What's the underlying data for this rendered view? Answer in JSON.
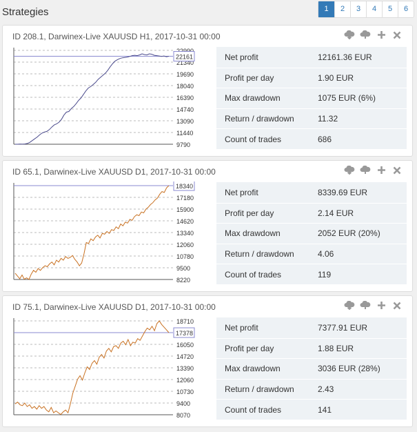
{
  "page_title": "Strategies",
  "pagination": {
    "pages": [
      "1",
      "2",
      "3",
      "4",
      "5",
      "6"
    ],
    "active": "1"
  },
  "icons": [
    "cloud-download-icon",
    "cloud-upload-icon",
    "plus-icon",
    "close-icon"
  ],
  "metric_labels": [
    "Net profit",
    "Profit per day",
    "Max drawdown",
    "Return / drawdown",
    "Count of trades"
  ],
  "strategies": [
    {
      "title": "ID 208.1, Darwinex-Live XAUUSD H1, 2017-10-31 00:00",
      "metrics": [
        "12161.36 EUR",
        "1.90 EUR",
        "1075 EUR (6%)",
        "11.32",
        "686"
      ],
      "chart_data": {
        "type": "line",
        "yticks": [
          "22990",
          "21340",
          "19690",
          "18040",
          "16390",
          "14740",
          "13090",
          "11440",
          "9790"
        ],
        "ylim": [
          9790,
          22990
        ],
        "current_label": "22161",
        "current_value": 22161,
        "series_color": "#4a4a8c",
        "values": [
          9790,
          9790,
          9810,
          9800,
          9830,
          9900,
          10050,
          10300,
          10550,
          10800,
          11100,
          11350,
          11500,
          11600,
          11850,
          12200,
          12500,
          12650,
          12900,
          13300,
          13900,
          14300,
          14400,
          14800,
          15100,
          15500,
          15950,
          16300,
          16800,
          17300,
          17700,
          17900,
          18200,
          18500,
          18900,
          19200,
          19500,
          19800,
          20200,
          20700,
          21150,
          21500,
          21700,
          21850,
          21950,
          22000,
          22050,
          22150,
          22250,
          22300,
          22250,
          22350,
          22500,
          22400,
          22350,
          22500,
          22450,
          22300,
          22250,
          22200,
          22150,
          22200,
          22100,
          22161
        ]
      }
    },
    {
      "title": "ID 65.1, Darwinex-Live XAUUSD D1, 2017-10-31 00:00",
      "metrics": [
        "8339.69 EUR",
        "2.14 EUR",
        "2052 EUR (20%)",
        "4.06",
        "119"
      ],
      "chart_data": {
        "type": "line",
        "yticks": [
          "18340",
          "17180",
          "15900",
          "14620",
          "13340",
          "12060",
          "10780",
          "9500",
          "8220"
        ],
        "ylim": [
          8220,
          18340
        ],
        "current_label": "18340",
        "current_value": 18340,
        "series_color": "#c87020",
        "values": [
          8900,
          8600,
          8300,
          8700,
          8250,
          8400,
          8220,
          8800,
          9200,
          9000,
          9400,
          9200,
          9500,
          9700,
          9600,
          9900,
          10100,
          9800,
          10300,
          10100,
          10500,
          10300,
          10700,
          10500,
          10600,
          10800,
          10400,
          10100,
          9700,
          10000,
          11000,
          12200,
          12100,
          12600,
          12400,
          12800,
          13000,
          12700,
          13200,
          13100,
          13400,
          13200,
          13600,
          13500,
          13900,
          13700,
          14200,
          14000,
          14400,
          14300,
          14700,
          14600,
          15000,
          15200,
          15100,
          15500,
          15400,
          15800,
          16000,
          16300,
          16500,
          16800,
          17000,
          17400,
          17700,
          17600,
          18100,
          18340
        ]
      }
    },
    {
      "title": "ID 75.1, Darwinex-Live XAUUSD D1, 2017-10-31 00:00",
      "metrics": [
        "7377.91 EUR",
        "1.88 EUR",
        "3036 EUR (28%)",
        "2.43",
        "141"
      ],
      "chart_data": {
        "type": "line",
        "yticks": [
          "18710",
          "17378",
          "16050",
          "14720",
          "13390",
          "12060",
          "10730",
          "9400",
          "8070"
        ],
        "ylim": [
          8070,
          18710
        ],
        "current_label": "17378",
        "current_value": 17378,
        "series_color": "#c87020",
        "values": [
          9300,
          9500,
          9200,
          9100,
          9400,
          9000,
          9200,
          8800,
          9000,
          8700,
          9100,
          8800,
          9000,
          8600,
          8400,
          8900,
          8300,
          8500,
          8300,
          8100,
          8400,
          8600,
          8300,
          9300,
          10500,
          11300,
          12100,
          12500,
          12000,
          12800,
          13500,
          13200,
          13900,
          14200,
          13800,
          14600,
          14900,
          14500,
          15300,
          15600,
          15200,
          15800,
          15900,
          15600,
          16200,
          16400,
          16000,
          16600,
          15900,
          16300,
          16200,
          16700,
          16500,
          17000,
          17500,
          17900,
          17700,
          18100,
          17600,
          18400,
          18710,
          18300,
          18000,
          17700,
          17378
        ]
      }
    }
  ]
}
